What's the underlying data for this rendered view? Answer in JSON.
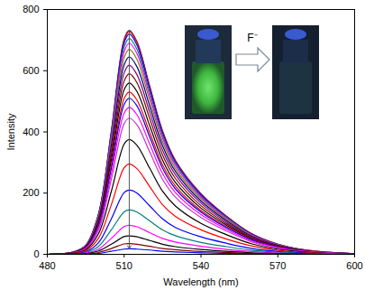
{
  "chart_data": {
    "type": "line",
    "x_label": "Wavelength (nm)",
    "y_label": "Intensity",
    "xlim": [
      480,
      600
    ],
    "xticks": [
      480,
      510,
      540,
      570,
      600
    ],
    "ylim": [
      0,
      800
    ],
    "yticks": [
      0,
      200,
      400,
      600,
      800
    ],
    "annotations": [
      "F⁻"
    ],
    "x": [
      480,
      490,
      495,
      500,
      505,
      510,
      512,
      515,
      520,
      525,
      530,
      540,
      550,
      560,
      570,
      580,
      590,
      600
    ],
    "series": [
      {
        "color": "#1a1a6e",
        "values": [
          0,
          7,
          29,
          132,
          403,
          703,
          732,
          695,
          549,
          403,
          307,
          198,
          124,
          66,
          33,
          15,
          6,
          2
        ]
      },
      {
        "color": "#ff0000",
        "values": [
          0,
          7,
          29,
          131,
          400,
          699,
          728,
          692,
          546,
          400,
          306,
          197,
          124,
          66,
          33,
          15,
          6,
          2
        ]
      },
      {
        "color": "#0000ff",
        "values": [
          0,
          7,
          29,
          130,
          396,
          691,
          720,
          684,
          540,
          396,
          302,
          194,
          122,
          65,
          32,
          14,
          6,
          2
        ]
      },
      {
        "color": "#008080",
        "values": [
          0,
          7,
          28,
          127,
          388,
          677,
          705,
          670,
          529,
          388,
          296,
          190,
          120,
          63,
          32,
          14,
          6,
          2
        ]
      },
      {
        "color": "#ff00ff",
        "values": [
          0,
          7,
          28,
          124,
          380,
          662,
          690,
          656,
          518,
          380,
          290,
          186,
          117,
          62,
          31,
          14,
          6,
          2
        ]
      },
      {
        "color": "#808000",
        "values": [
          0,
          7,
          27,
          121,
          369,
          643,
          670,
          637,
          503,
          369,
          281,
          181,
          114,
          60,
          30,
          13,
          5,
          2
        ]
      },
      {
        "color": "#000080",
        "values": [
          0,
          6,
          26,
          116,
          355,
          619,
          645,
          613,
          484,
          355,
          271,
          174,
          110,
          58,
          29,
          13,
          5,
          2
        ]
      },
      {
        "color": "#800080",
        "values": [
          0,
          6,
          25,
          111,
          340,
          593,
          618,
          587,
          464,
          340,
          260,
          167,
          105,
          56,
          28,
          12,
          5,
          2
        ]
      },
      {
        "color": "#800000",
        "values": [
          0,
          6,
          24,
          106,
          325,
          566,
          590,
          561,
          443,
          325,
          248,
          159,
          100,
          53,
          27,
          12,
          5,
          2
        ]
      },
      {
        "color": "#000000",
        "values": [
          0,
          6,
          22,
          101,
          308,
          538,
          560,
          532,
          420,
          308,
          235,
          151,
          95,
          50,
          25,
          11,
          4,
          2
        ]
      },
      {
        "color": "#ff0000",
        "values": [
          0,
          5,
          21,
          95,
          292,
          509,
          530,
          504,
          398,
          292,
          223,
          143,
          90,
          48,
          24,
          11,
          4,
          2
        ]
      },
      {
        "color": "#0000ff",
        "values": [
          0,
          5,
          20,
          92,
          281,
          490,
          510,
          485,
          383,
          281,
          214,
          138,
          87,
          46,
          23,
          10,
          4,
          2
        ]
      },
      {
        "color": "#ff00ff",
        "values": [
          0,
          5,
          19,
          86,
          264,
          461,
          480,
          456,
          360,
          264,
          202,
          130,
          82,
          43,
          22,
          10,
          4,
          1
        ]
      },
      {
        "color": "#cc33cc",
        "values": [
          0,
          4,
          18,
          80,
          245,
          427,
          445,
          423,
          334,
          245,
          187,
          120,
          76,
          40,
          20,
          9,
          4,
          1
        ]
      },
      {
        "color": "#000000",
        "values": [
          0,
          4,
          15,
          68,
          206,
          360,
          375,
          356,
          281,
          206,
          158,
          101,
          64,
          34,
          17,
          8,
          3,
          1
        ]
      },
      {
        "color": "#ff0000",
        "values": [
          0,
          3,
          12,
          53,
          162,
          283,
          295,
          280,
          221,
          162,
          124,
          80,
          50,
          27,
          13,
          6,
          2,
          1
        ]
      },
      {
        "color": "#0000ff",
        "values": [
          0,
          2,
          8,
          38,
          116,
          202,
          210,
          200,
          158,
          116,
          88,
          57,
          36,
          19,
          9,
          4,
          2,
          1
        ]
      },
      {
        "color": "#008080",
        "values": [
          0,
          1,
          6,
          26,
          80,
          139,
          145,
          138,
          109,
          80,
          61,
          39,
          25,
          13,
          7,
          3,
          1,
          0
        ]
      },
      {
        "color": "#ff00ff",
        "values": [
          0,
          1,
          4,
          17,
          52,
          91,
          95,
          90,
          71,
          52,
          40,
          26,
          16,
          9,
          4,
          2,
          1,
          0
        ]
      },
      {
        "color": "#000000",
        "values": [
          0,
          1,
          2,
          11,
          33,
          58,
          60,
          57,
          45,
          33,
          25,
          16,
          10,
          5,
          3,
          1,
          0,
          0
        ]
      },
      {
        "color": "#800000",
        "values": [
          0,
          0,
          1,
          6,
          19,
          34,
          35,
          33,
          26,
          19,
          15,
          9,
          6,
          3,
          2,
          1,
          0,
          0
        ]
      },
      {
        "color": "#0000ff",
        "values": [
          0,
          0,
          1,
          3,
          10,
          17,
          18,
          17,
          14,
          10,
          8,
          5,
          3,
          2,
          1,
          0,
          0,
          0
        ]
      }
    ]
  }
}
